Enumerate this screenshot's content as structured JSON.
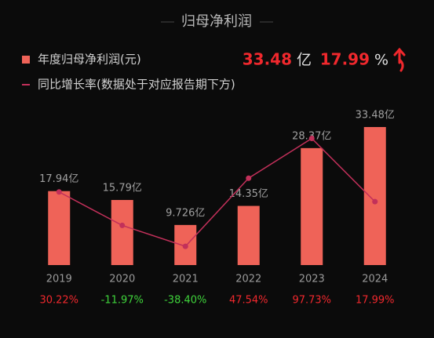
{
  "header": {
    "title": "归母净利润"
  },
  "summary": {
    "value": "33.48",
    "unit": "亿",
    "change": "17.99",
    "change_unit": "%"
  },
  "chart_data": {
    "type": "bar",
    "categories": [
      "2019",
      "2020",
      "2021",
      "2022",
      "2023",
      "2024"
    ],
    "series": [
      {
        "name": "年度归母净利润(元)",
        "color": "#ef6358",
        "values": [
          17.94,
          15.79,
          9.726,
          14.35,
          28.37,
          33.48
        ],
        "value_labels": [
          "17.94亿",
          "15.79亿",
          "9.726亿",
          "14.35亿",
          "28.37亿",
          "33.48亿"
        ]
      },
      {
        "name": "同比增长率(数据处于对应报告期下方)",
        "type": "line",
        "axis": "y2",
        "color": "#c2305a",
        "values": [
          30.22,
          -11.97,
          -38.4,
          47.54,
          97.73,
          17.99
        ],
        "value_labels": [
          "30.22%",
          "-11.97%",
          "-38.40%",
          "47.54%",
          "97.73%",
          "17.99%"
        ],
        "positive_color": "#f0282d",
        "negative_color": "#3fd43b"
      }
    ],
    "ylim": [
      0,
      35
    ],
    "y2lim": [
      -62,
      120
    ]
  }
}
